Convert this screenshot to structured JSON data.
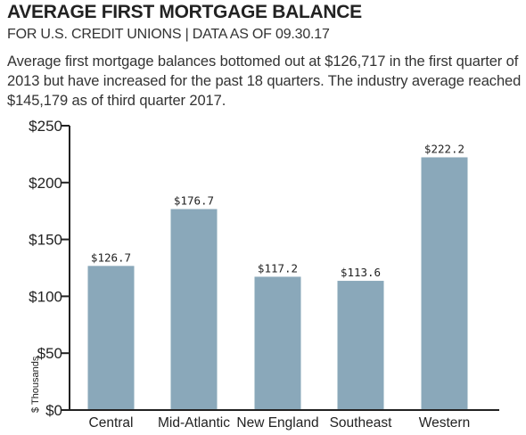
{
  "header": {
    "title": "AVERAGE FIRST MORTGAGE BALANCE",
    "subtitle": "FOR U.S. CREDIT UNIONS | DATA AS OF 09.30.17",
    "description": "Average first mortgage balances bottomed out at $126,717 in the first quarter of 2013 but have increased for the past 18 quarters. The industry average reached $145,179 as of third quarter 2017."
  },
  "colors": {
    "bar": "#8aa8ba",
    "axis": "#222222"
  },
  "chart_data": {
    "type": "bar",
    "title": "AVERAGE FIRST MORTGAGE BALANCE",
    "subtitle": "FOR U.S. CREDIT UNIONS | DATA AS OF 09.30.17",
    "xlabel": "",
    "ylabel": "$ Thousands",
    "categories": [
      "Central",
      "Mid-Atlantic",
      "New England",
      "Southeast",
      "Western"
    ],
    "values": [
      126.7,
      176.7,
      117.2,
      113.6,
      222.2
    ],
    "value_labels": [
      "$126.7",
      "$176.7",
      "$117.2",
      "$113.6",
      "$222.2"
    ],
    "ylim": [
      0,
      250
    ],
    "yticks": [
      0,
      50,
      100,
      150,
      200,
      250
    ],
    "ytick_labels": [
      "$0",
      "$50",
      "$100",
      "$150",
      "$200",
      "$250"
    ],
    "grid": false,
    "legend": "none"
  }
}
